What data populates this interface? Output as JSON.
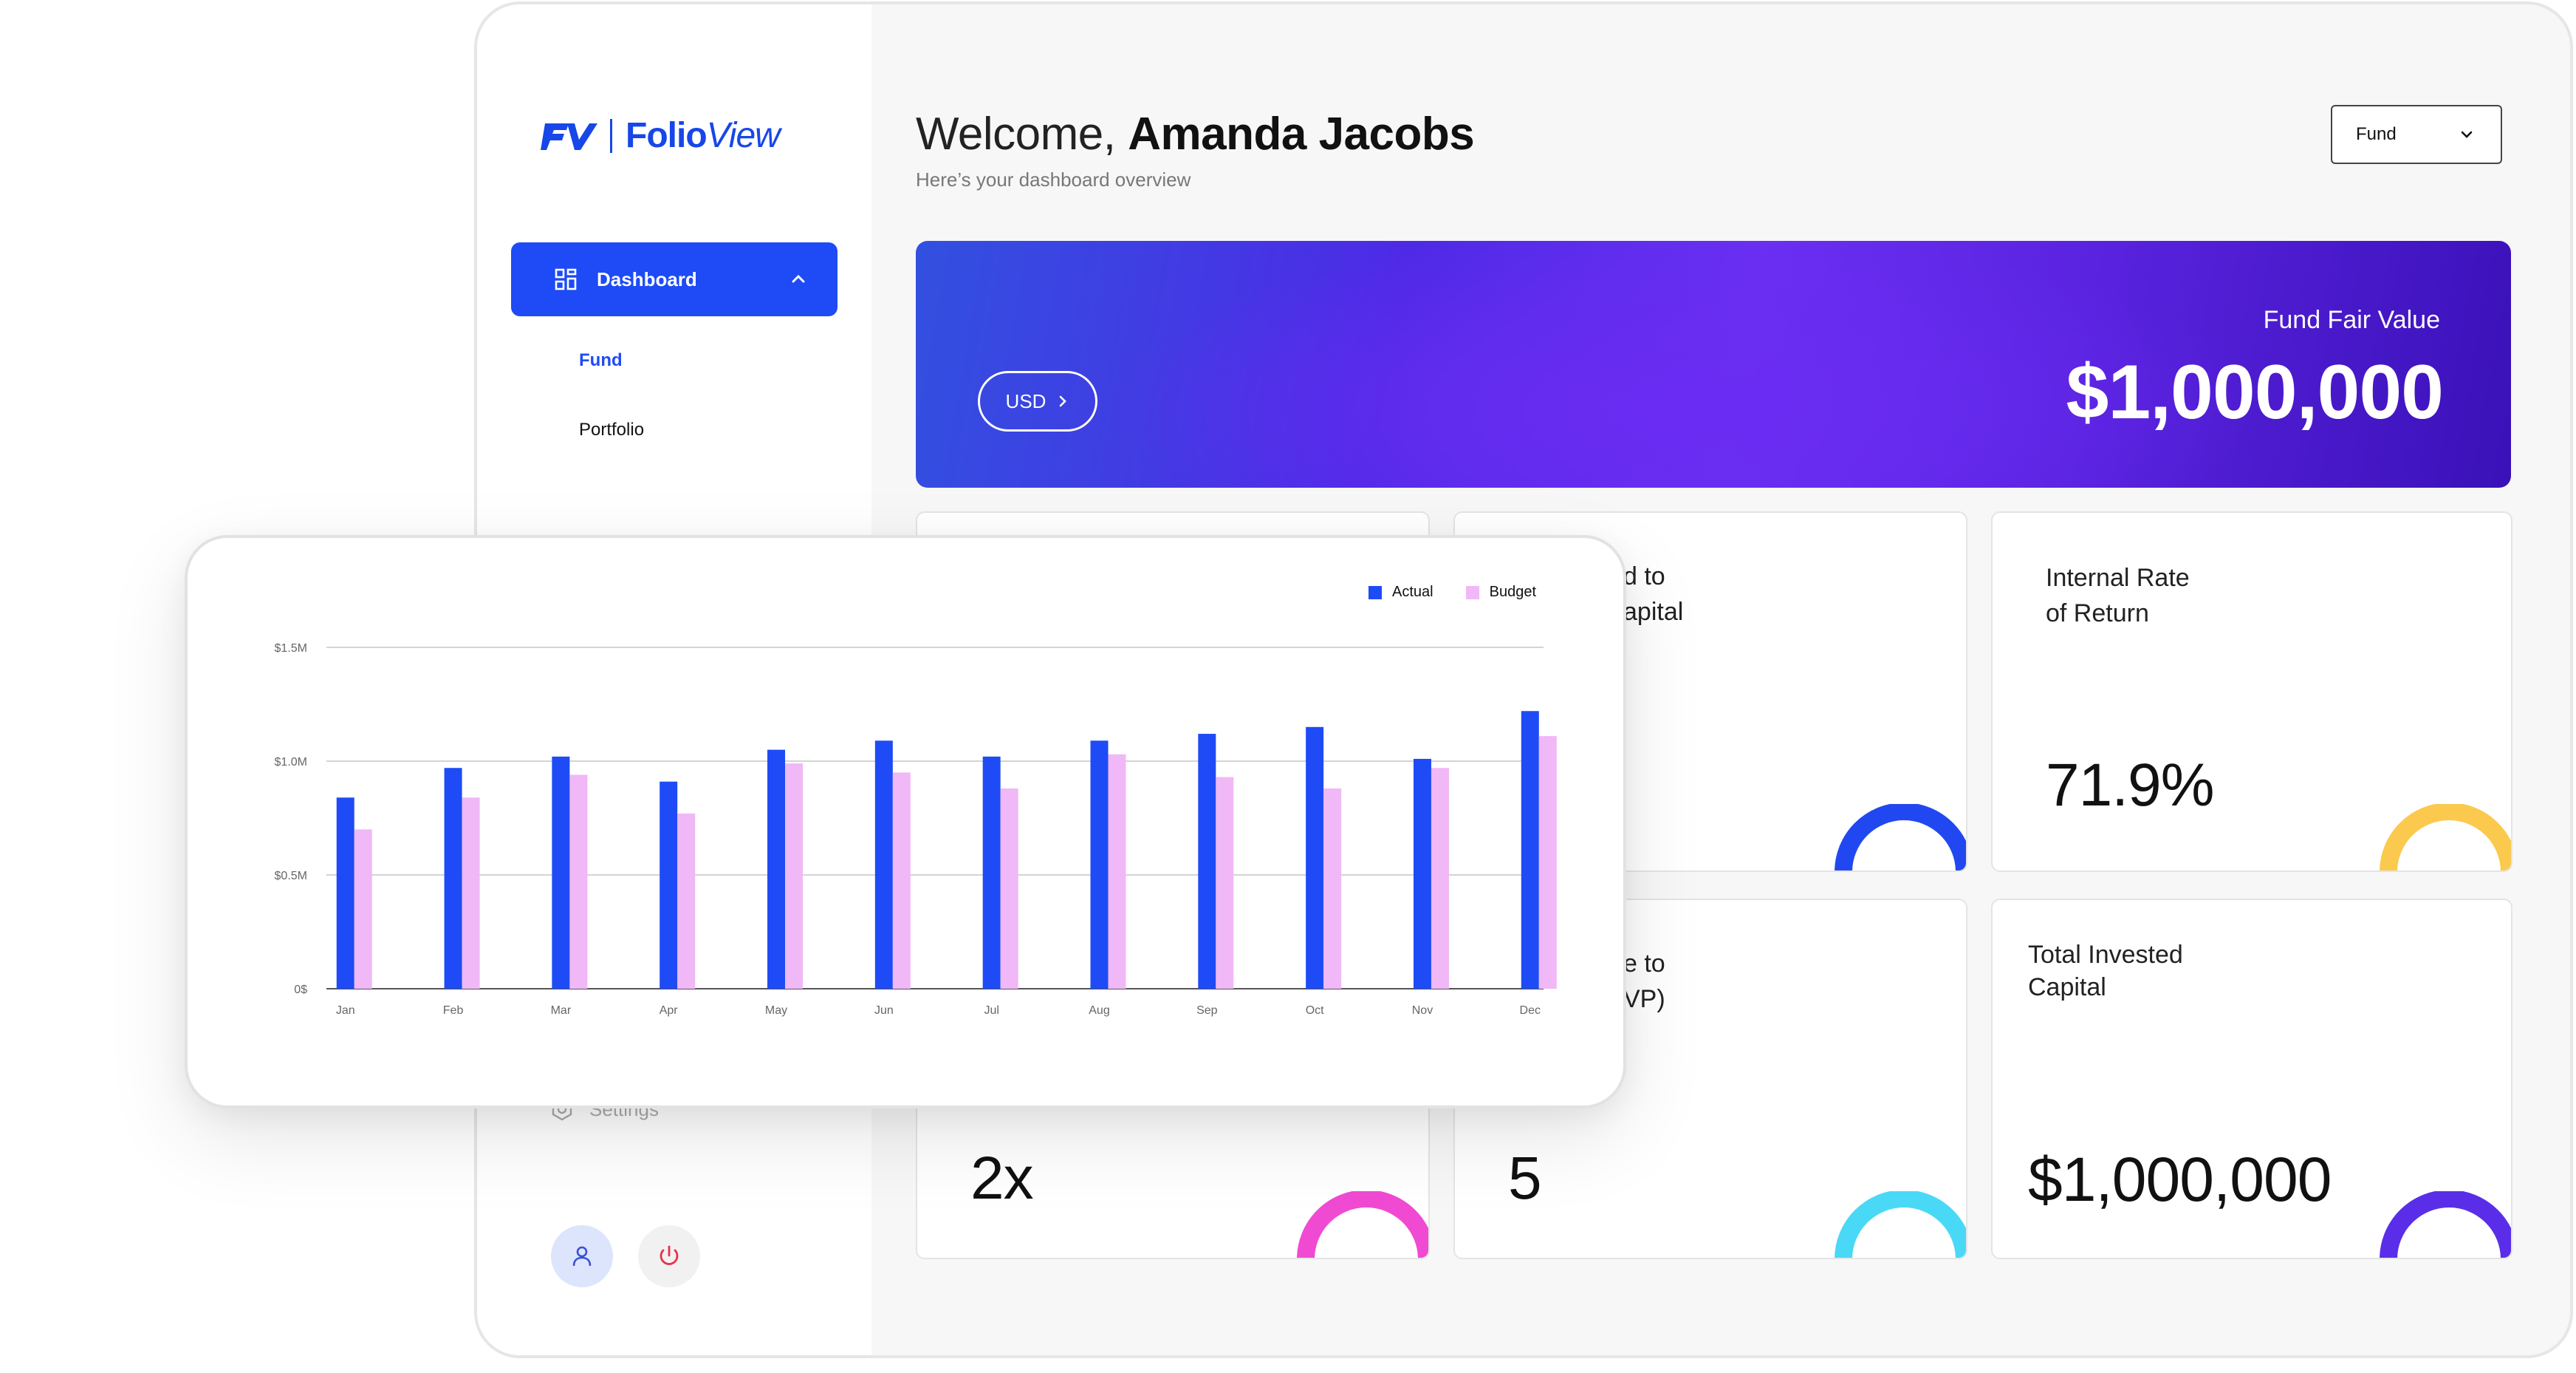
{
  "brand": {
    "mark": "FV",
    "name_bold": "Folio",
    "name_light": "View",
    "color": "#1747e8"
  },
  "sidebar": {
    "dashboard_label": "Dashboard",
    "sub_items": [
      "Fund",
      "Portfolio"
    ],
    "settings_label": "Settings"
  },
  "header": {
    "welcome_prefix": "Welcome,",
    "user_name": "Amanda Jacobs",
    "subtitle": "Here’s your dashboard overview",
    "select_value": "Fund"
  },
  "hero": {
    "currency": "USD",
    "label": "Fund Fair Value",
    "value": "$1,000,000"
  },
  "cards": [
    {
      "title": "",
      "value": "",
      "arc_color": ""
    },
    {
      "title": "d to\napital",
      "value": "",
      "arc_color": "#2148f0"
    },
    {
      "title": "Internal Rate\nof Return",
      "value": "71.9%",
      "arc_color": "#fbc94e"
    },
    {
      "title": "",
      "value": "2x",
      "arc_color": "#f04ad2"
    },
    {
      "title": "e to\nVP)",
      "value": "5",
      "arc_color": "#4ad8f7"
    },
    {
      "title": "Total Invested\nCapital",
      "value": "$1,000,000",
      "arc_color": "#5a2ee8"
    }
  ],
  "colors": {
    "accent": "#1e4bf5",
    "actual": "#1e4bf5",
    "budget": "#f0b8f6"
  },
  "chart_data": {
    "type": "bar",
    "categories": [
      "Jan",
      "Feb",
      "Mar",
      "Apr",
      "May",
      "Jun",
      "Jul",
      "Aug",
      "Sep",
      "Oct",
      "Nov",
      "Dec"
    ],
    "series": [
      {
        "name": "Actual",
        "values": [
          0.84,
          0.97,
          1.02,
          0.91,
          1.05,
          1.09,
          1.02,
          1.09,
          1.12,
          1.15,
          1.01,
          1.22
        ]
      },
      {
        "name": "Budget",
        "values": [
          0.7,
          0.84,
          0.94,
          0.77,
          0.99,
          0.95,
          0.88,
          1.03,
          0.93,
          0.88,
          0.97,
          1.11
        ]
      }
    ],
    "y_ticks": [
      "0$",
      "$0.5M",
      "$1.0M",
      "$1.5M"
    ],
    "ylim": [
      0,
      1.5
    ],
    "legend_position": "top-right",
    "grid": true,
    "title": "",
    "xlabel": "",
    "ylabel": ""
  }
}
